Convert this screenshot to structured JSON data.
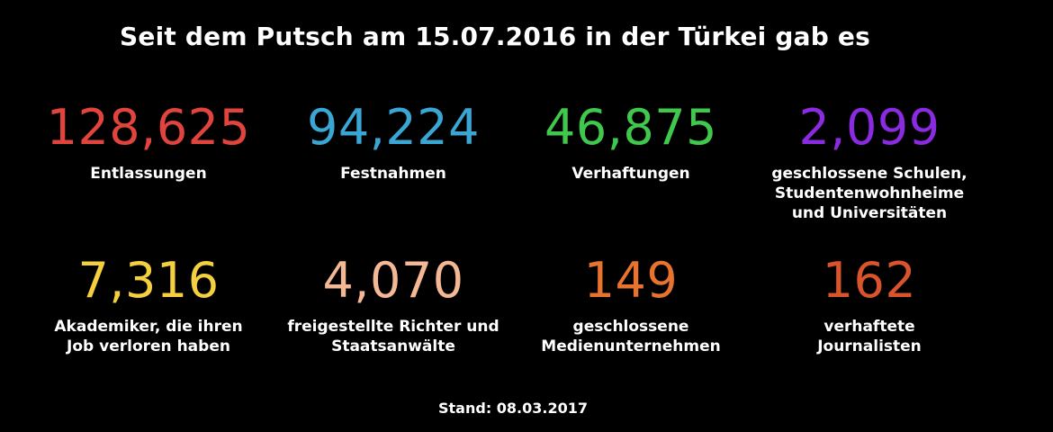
{
  "title": "Seit dem Putsch am 15.07.2016 in der Türkei gab es",
  "stats": [
    {
      "value": "128,625",
      "label": "Entlassungen",
      "color": "#e0443d"
    },
    {
      "value": "94,224",
      "label": "Festnahmen",
      "color": "#3aa6d4"
    },
    {
      "value": "46,875",
      "label": "Verhaftungen",
      "color": "#3fc84c"
    },
    {
      "value": "2,099",
      "label": "geschlossene Schulen,\nStudentenwohnheime\nund Universitäten",
      "color": "#8a2be2"
    },
    {
      "value": "7,316",
      "label": "Akademiker, die ihren\nJob verloren haben",
      "color": "#f4d03f"
    },
    {
      "value": "4,070",
      "label": "freigestellte Richter und\nStaatsanwälte",
      "color": "#f4b894"
    },
    {
      "value": "149",
      "label": "geschlossene\nMedienunternehmen",
      "color": "#e8732e"
    },
    {
      "value": "162",
      "label": "verhaftete\nJournalisten",
      "color": "#d9532b"
    }
  ],
  "footer": "Stand: 08.03.2017"
}
